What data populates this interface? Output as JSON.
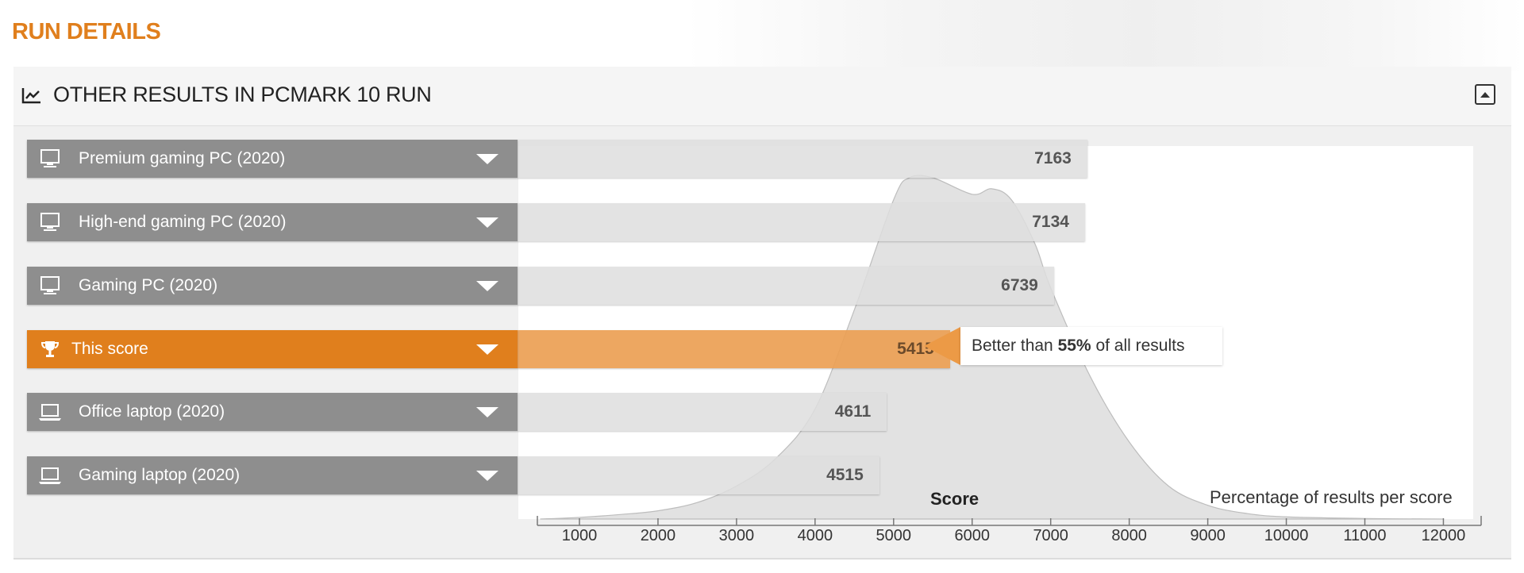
{
  "page": {
    "title": "RUN DETAILS"
  },
  "panel": {
    "title": "OTHER RESULTS IN PCMARK 10 RUN"
  },
  "colors": {
    "accent": "#e07f1d",
    "label_bg": "#8e8e8e",
    "bar_bg": "#dedede",
    "highlight_bar": "#eca054"
  },
  "rows": [
    {
      "label": "Premium gaming PC (2020)",
      "value": "7163",
      "score": 7163,
      "icon": "desktop-icon",
      "highlight": false
    },
    {
      "label": "High-end gaming PC (2020)",
      "value": "7134",
      "score": 7134,
      "icon": "desktop-icon",
      "highlight": false
    },
    {
      "label": "Gaming PC (2020)",
      "value": "6739",
      "score": 6739,
      "icon": "desktop-icon",
      "highlight": false
    },
    {
      "label": "This score",
      "value": "5415",
      "score": 5415,
      "icon": "trophy-icon",
      "highlight": true
    },
    {
      "label": "Office laptop (2020)",
      "value": "4611",
      "score": 4611,
      "icon": "laptop-icon",
      "highlight": false
    },
    {
      "label": "Gaming laptop (2020)",
      "value": "4515",
      "score": 4515,
      "icon": "laptop-icon",
      "highlight": false
    }
  ],
  "callout": {
    "prefix": "Better than ",
    "percent": "55%",
    "suffix": " of all results"
  },
  "chart_data": {
    "type": "area",
    "title": "",
    "xlabel": "Score",
    "ylabel": "Percentage of results per score",
    "xlim": [
      500,
      12500
    ],
    "x_ticks": [
      1000,
      2000,
      3000,
      4000,
      5000,
      6000,
      7000,
      8000,
      9000,
      10000,
      11000,
      12000
    ],
    "x": [
      500,
      1000,
      1500,
      2000,
      2500,
      3000,
      3500,
      4000,
      4500,
      5000,
      5200,
      5500,
      6000,
      6250,
      6500,
      6800,
      7000,
      7500,
      8000,
      8500,
      9000,
      9500,
      10000,
      11000,
      12000
    ],
    "y": [
      0,
      0.3,
      0.8,
      1.5,
      3,
      6,
      11,
      20,
      38,
      58,
      62,
      62,
      59,
      60,
      58,
      50,
      42,
      26,
      14,
      6,
      2.5,
      1,
      0.4,
      0.1,
      0
    ],
    "bars": [
      {
        "name": "Premium gaming PC (2020)",
        "value": 7163
      },
      {
        "name": "High-end gaming PC (2020)",
        "value": 7134
      },
      {
        "name": "Gaming PC (2020)",
        "value": 6739
      },
      {
        "name": "This score",
        "value": 5415
      },
      {
        "name": "Office laptop (2020)",
        "value": 4611
      },
      {
        "name": "Gaming laptop (2020)",
        "value": 4515
      }
    ],
    "grid": false
  }
}
